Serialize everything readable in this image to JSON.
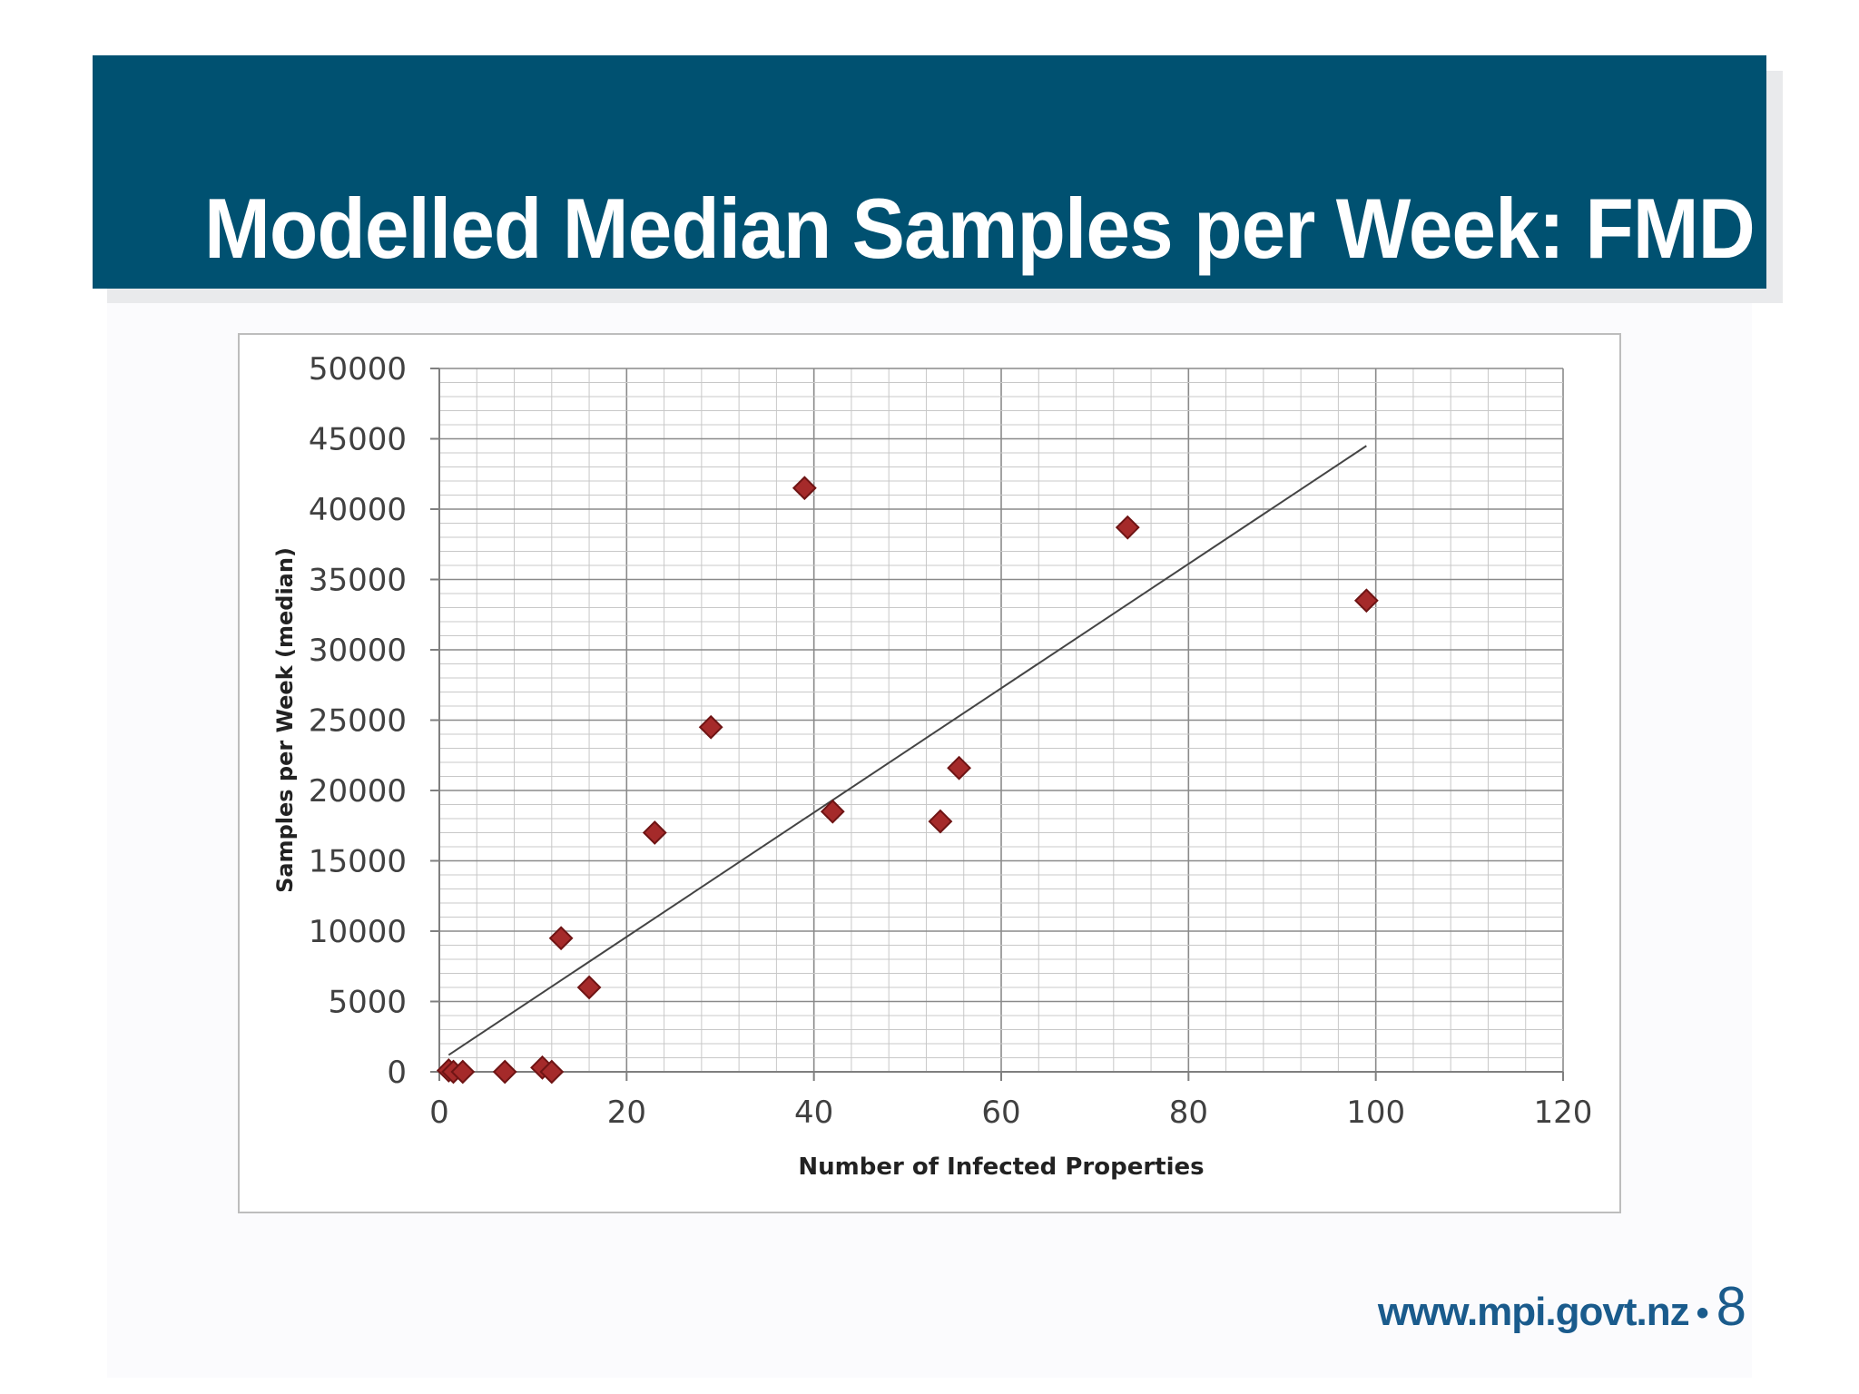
{
  "slide": {
    "title": "Modelled Median Samples per Week: FMD",
    "footer_url": "www.mpi.govt.nz",
    "footer_separator": "•",
    "page_number": "8"
  },
  "colors": {
    "title_bar": "#005171",
    "marker_fill": "#a52a2a",
    "marker_stroke": "#6e1414",
    "trendline": "#444444",
    "footer_text": "#1a5b8c"
  },
  "chart_data": {
    "type": "scatter",
    "title": "",
    "xlabel": "Number of Infected Properties",
    "ylabel": "Samples per Week (median)",
    "xlim": [
      0,
      120
    ],
    "ylim": [
      0,
      50000
    ],
    "x_ticks": [
      0,
      20,
      40,
      60,
      80,
      100,
      120
    ],
    "y_ticks": [
      0,
      5000,
      10000,
      15000,
      20000,
      25000,
      30000,
      35000,
      40000,
      45000,
      50000
    ],
    "x_tick_labels": [
      "0",
      "20",
      "40",
      "60",
      "80",
      "100",
      "120"
    ],
    "y_tick_labels": [
      "0",
      "5000",
      "10000",
      "15000",
      "20000",
      "25000",
      "30000",
      "35000",
      "40000",
      "45000",
      "50000"
    ],
    "grid": true,
    "legend": "none",
    "series": [
      {
        "name": "Samples per Week (median)",
        "marker": "diamond",
        "points": [
          {
            "x": 1,
            "y": 100
          },
          {
            "x": 1.5,
            "y": 0
          },
          {
            "x": 2.5,
            "y": 0
          },
          {
            "x": 7,
            "y": 0
          },
          {
            "x": 11,
            "y": 300
          },
          {
            "x": 12,
            "y": 0
          },
          {
            "x": 13,
            "y": 9500
          },
          {
            "x": 16,
            "y": 6000
          },
          {
            "x": 23,
            "y": 17000
          },
          {
            "x": 29,
            "y": 24500
          },
          {
            "x": 39,
            "y": 41500
          },
          {
            "x": 42,
            "y": 18500
          },
          {
            "x": 53.5,
            "y": 17800
          },
          {
            "x": 55.5,
            "y": 21600
          },
          {
            "x": 73.5,
            "y": 38700
          },
          {
            "x": 99,
            "y": 33500
          }
        ]
      }
    ],
    "trendline": {
      "type": "linear",
      "from": {
        "x": 1,
        "y": 1200
      },
      "to": {
        "x": 99,
        "y": 44500
      }
    }
  }
}
